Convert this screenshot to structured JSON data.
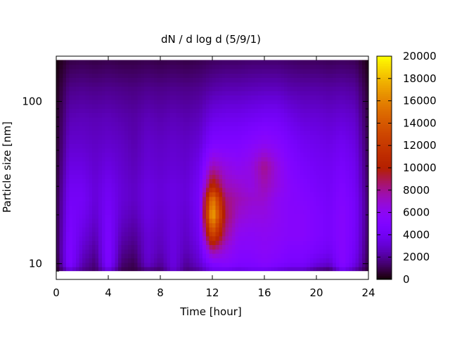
{
  "chart_data": {
    "type": "heatmap",
    "title": "dN / d log d (5/9/1)",
    "xlabel": "Time [hour]",
    "ylabel": "Particle size [nm]",
    "xlim": [
      0,
      24
    ],
    "ylim": [
      8.0,
      190
    ],
    "ylog": true,
    "x_ticks": [
      0,
      4,
      8,
      12,
      16,
      20,
      24
    ],
    "y_ticks": [
      10,
      100
    ],
    "colorbar": {
      "range": [
        0,
        20000
      ],
      "ticks": [
        0,
        2000,
        4000,
        6000,
        8000,
        10000,
        12000,
        14000,
        16000,
        18000,
        20000
      ],
      "colormap": "gnuplot-rgbformulae-7-5-15",
      "colors": [
        "#000000",
        "#4a0080",
        "#7a00ff",
        "#b00070",
        "#d22800",
        "#f08a00",
        "#ffff00"
      ]
    },
    "grid": false,
    "legend": "none",
    "size_bins_nm": [
      9,
      10,
      12,
      15,
      20,
      25,
      30,
      40,
      55,
      80,
      120,
      180
    ],
    "hours": [
      0,
      1,
      2,
      3,
      4,
      5,
      6,
      7,
      8,
      9,
      10,
      11,
      12,
      13,
      14,
      15,
      16,
      17,
      18,
      19,
      20,
      21,
      22,
      23,
      24
    ],
    "values": [
      [
        200,
        3000,
        1800,
        1200,
        3200,
        1000,
        800,
        1500,
        1200,
        3000,
        1500,
        2000,
        3500,
        3500,
        3000,
        3500,
        3500,
        3000,
        2500,
        2500,
        1500,
        1000,
        3500,
        2000,
        500
      ],
      [
        500,
        5000,
        2500,
        1500,
        5000,
        1500,
        1000,
        3000,
        2000,
        3500,
        2000,
        3000,
        5000,
        5500,
        5000,
        5000,
        5500,
        5000,
        4500,
        4500,
        3500,
        3000,
        5500,
        3500,
        800
      ],
      [
        800,
        5000,
        3000,
        2000,
        5000,
        2000,
        1500,
        3200,
        2500,
        3500,
        2500,
        3500,
        8000,
        6500,
        5500,
        5500,
        5800,
        5500,
        5000,
        5000,
        4500,
        4000,
        5500,
        4000,
        1000
      ],
      [
        800,
        4800,
        3500,
        2500,
        4800,
        2500,
        2000,
        3200,
        2800,
        3500,
        2800,
        4000,
        13000,
        8000,
        6000,
        5800,
        6000,
        5800,
        5500,
        5500,
        5000,
        4500,
        5500,
        4200,
        1200
      ],
      [
        800,
        4500,
        4000,
        3000,
        4500,
        3000,
        2500,
        3500,
        3000,
        3500,
        3000,
        4200,
        18000,
        9000,
        7000,
        6500,
        6500,
        6000,
        5500,
        5500,
        5000,
        4500,
        5500,
        4300,
        1300
      ],
      [
        800,
        4200,
        4200,
        3200,
        4200,
        3200,
        2800,
        3500,
        3200,
        3500,
        3200,
        4300,
        16000,
        8500,
        7500,
        7000,
        7000,
        6000,
        5500,
        5200,
        4800,
        4300,
        5200,
        4200,
        1300
      ],
      [
        700,
        4000,
        4000,
        3200,
        4000,
        3200,
        2800,
        3500,
        3200,
        3500,
        3200,
        4200,
        11000,
        7500,
        7000,
        6500,
        7500,
        6500,
        5500,
        5000,
        4500,
        4200,
        5000,
        4000,
        1200
      ],
      [
        600,
        3500,
        3500,
        3000,
        3500,
        3000,
        2600,
        3200,
        3000,
        3200,
        3000,
        3800,
        7500,
        6500,
        6000,
        6500,
        8200,
        6500,
        5200,
        4500,
        4200,
        4000,
        4500,
        3800,
        1000
      ],
      [
        500,
        3000,
        3000,
        2800,
        3000,
        2800,
        2400,
        3000,
        2800,
        3000,
        2800,
        3200,
        5000,
        5000,
        5000,
        5500,
        6000,
        5500,
        4600,
        4000,
        3800,
        3600,
        4000,
        3400,
        900
      ],
      [
        400,
        2500,
        2600,
        2500,
        2600,
        2400,
        2200,
        2600,
        2400,
        2600,
        2400,
        2600,
        3600,
        3800,
        3800,
        4000,
        4200,
        4200,
        3600,
        3200,
        3200,
        3000,
        3200,
        2900,
        700
      ],
      [
        300,
        1800,
        1900,
        1800,
        1900,
        1800,
        1700,
        1900,
        1800,
        1900,
        1800,
        1900,
        2300,
        2500,
        2500,
        2600,
        2700,
        2700,
        2400,
        2300,
        2300,
        2200,
        2300,
        2100,
        500
      ],
      [
        100,
        900,
        1000,
        900,
        1000,
        900,
        900,
        1000,
        900,
        1000,
        900,
        1000,
        1200,
        1300,
        1300,
        1400,
        1400,
        1400,
        1300,
        1200,
        1200,
        1100,
        1200,
        1100,
        200
      ]
    ]
  }
}
